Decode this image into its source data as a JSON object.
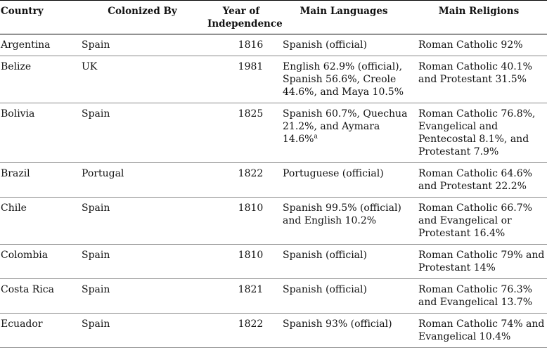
{
  "table": {
    "headers": {
      "country": "Country",
      "colonized_by": "Colonized By",
      "year_line1": "Year of",
      "year_line2": "Independence",
      "languages": "Main Languages",
      "religions": "Main Religions"
    },
    "rows": [
      {
        "country": "Argentina",
        "colonized_by": "Spain",
        "year": "1816",
        "languages": "Spanish (official)",
        "religions": "Roman Catholic 92%"
      },
      {
        "country": "Belize",
        "colonized_by": "UK",
        "year": "1981",
        "languages": "English 62.9% (official), Spanish 56.6%, Creole 44.6%, and Maya 10.5%",
        "religions": "Roman Catholic 40.1% and Protestant 31.5%"
      },
      {
        "country": "Bolivia",
        "colonized_by": "Spain",
        "year": "1825",
        "languages": "Spanish 60.7%, Quechua 21.2%, and Aymara 14.6%",
        "languages_note": "a",
        "religions": "Roman Catholic 76.8%, Evangelical and Pentecostal 8.1%, and Protestant 7.9%"
      },
      {
        "country": "Brazil",
        "colonized_by": "Portugal",
        "year": "1822",
        "languages": "Portuguese (official)",
        "religions": "Roman Catholic 64.6% and Protestant 22.2%"
      },
      {
        "country": "Chile",
        "colonized_by": "Spain",
        "year": "1810",
        "languages": "Spanish 99.5% (official) and English 10.2%",
        "religions": "Roman Catholic 66.7% and Evangelical or Protestant 16.4%"
      },
      {
        "country": "Colombia",
        "colonized_by": "Spain",
        "year": "1810",
        "languages": "Spanish (official)",
        "religions": "Roman Catholic 79% and Protestant 14%"
      },
      {
        "country": "Costa Rica",
        "colonized_by": "Spain",
        "year": "1821",
        "languages": "Spanish (official)",
        "religions": "Roman Catholic 76.3% and Evangelical 13.7%"
      },
      {
        "country": "Ecuador",
        "colonized_by": "Spain",
        "year": "1822",
        "languages": "Spanish 93% (official)",
        "religions": "Roman Catholic 74% and Evangelical 10.4%"
      }
    ]
  }
}
